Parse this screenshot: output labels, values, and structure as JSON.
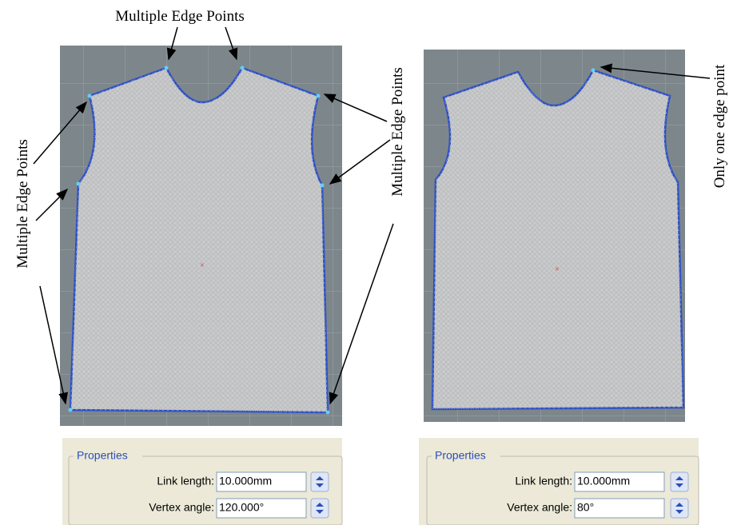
{
  "left_panel": {
    "annotations": {
      "top": "Multiple Edge Points",
      "side": "Multiple Edge Points"
    },
    "properties": {
      "title": "Properties",
      "link_length_label": "Link length:",
      "link_length_value": "10.000mm",
      "vertex_angle_label": "Vertex angle:",
      "vertex_angle_value": "120.000°"
    }
  },
  "middle_annotation": "Multiple Edge Points",
  "right_panel": {
    "annotation": "Only one edge point",
    "properties": {
      "title": "Properties",
      "link_length_label": "Link length:",
      "link_length_value": "10.000mm",
      "vertex_angle_label": "Vertex angle:",
      "vertex_angle_value": "80°"
    }
  }
}
